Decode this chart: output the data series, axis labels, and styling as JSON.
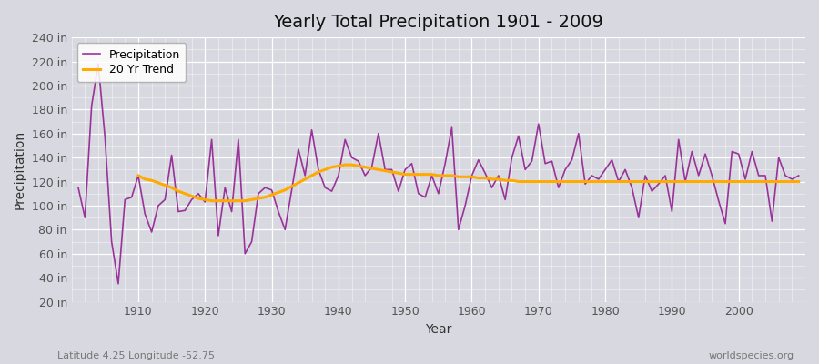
{
  "title": "Yearly Total Precipitation 1901 - 2009",
  "xlabel": "Year",
  "ylabel": "Precipitation",
  "subtitle_left": "Latitude 4.25 Longitude -52.75",
  "subtitle_right": "worldspecies.org",
  "bg_color": "#d8d8e0",
  "plot_bg_color": "#d8d8e0",
  "precip_color": "#993399",
  "trend_color": "#ffaa00",
  "ylim": [
    20,
    240
  ],
  "yticks": [
    20,
    40,
    60,
    80,
    100,
    120,
    140,
    160,
    180,
    200,
    220,
    240
  ],
  "xlim_min": 1900,
  "xlim_max": 2010,
  "years": [
    1901,
    1902,
    1903,
    1904,
    1905,
    1906,
    1907,
    1908,
    1909,
    1910,
    1911,
    1912,
    1913,
    1914,
    1915,
    1916,
    1917,
    1918,
    1919,
    1920,
    1921,
    1922,
    1923,
    1924,
    1925,
    1926,
    1927,
    1928,
    1929,
    1930,
    1931,
    1932,
    1933,
    1934,
    1935,
    1936,
    1937,
    1938,
    1939,
    1940,
    1941,
    1942,
    1943,
    1944,
    1945,
    1946,
    1947,
    1948,
    1949,
    1950,
    1951,
    1952,
    1953,
    1954,
    1955,
    1956,
    1957,
    1958,
    1959,
    1960,
    1961,
    1962,
    1963,
    1964,
    1965,
    1966,
    1967,
    1968,
    1969,
    1970,
    1971,
    1972,
    1973,
    1974,
    1975,
    1976,
    1977,
    1978,
    1979,
    1980,
    1981,
    1982,
    1983,
    1984,
    1985,
    1986,
    1987,
    1988,
    1989,
    1990,
    1991,
    1992,
    1993,
    1994,
    1995,
    1996,
    1997,
    1998,
    1999,
    2000,
    2001,
    2002,
    2003,
    2004,
    2005,
    2006,
    2007,
    2008,
    2009
  ],
  "precip": [
    115,
    90,
    183,
    218,
    157,
    70,
    35,
    105,
    107,
    125,
    93,
    78,
    100,
    105,
    142,
    95,
    96,
    105,
    110,
    103,
    155,
    75,
    115,
    95,
    155,
    60,
    70,
    110,
    115,
    113,
    95,
    80,
    113,
    147,
    125,
    163,
    130,
    115,
    112,
    125,
    155,
    140,
    137,
    125,
    132,
    160,
    130,
    130,
    112,
    130,
    135,
    110,
    107,
    125,
    110,
    135,
    165,
    80,
    100,
    125,
    138,
    127,
    115,
    125,
    105,
    140,
    158,
    130,
    137,
    168,
    135,
    137,
    115,
    130,
    138,
    160,
    118,
    125,
    122,
    130,
    138,
    120,
    130,
    115,
    90,
    125,
    112,
    118,
    125,
    95,
    155,
    120,
    145,
    125,
    143,
    125,
    104,
    85,
    145,
    143,
    122,
    145,
    125,
    125,
    87,
    140,
    125,
    122,
    125
  ],
  "trend_start_year": 1910,
  "trend": [
    125,
    122,
    121,
    119,
    117,
    115,
    112,
    110,
    108,
    106,
    105,
    104,
    104,
    104,
    104,
    104,
    104,
    105,
    106,
    107,
    109,
    111,
    113,
    116,
    119,
    122,
    125,
    128,
    130,
    132,
    133,
    134,
    134,
    133,
    132,
    131,
    130,
    129,
    128,
    127,
    126,
    126,
    126,
    126,
    126,
    125,
    125,
    125,
    124,
    124,
    124,
    123,
    123,
    122,
    122,
    121,
    121,
    120,
    120,
    120,
    120,
    120,
    120,
    120,
    120,
    120,
    120,
    120,
    120,
    120,
    120,
    120,
    120,
    120,
    120,
    120,
    120,
    120,
    120,
    120,
    120,
    120,
    120,
    120,
    120,
    120,
    120,
    120,
    120,
    120,
    120,
    120,
    120,
    120,
    120,
    120,
    120,
    120,
    120,
    120
  ],
  "legend_label_precip": "Precipitation",
  "legend_label_trend": "20 Yr Trend",
  "title_fontsize": 14,
  "axis_label_fontsize": 10,
  "tick_fontsize": 9,
  "legend_fontsize": 9
}
